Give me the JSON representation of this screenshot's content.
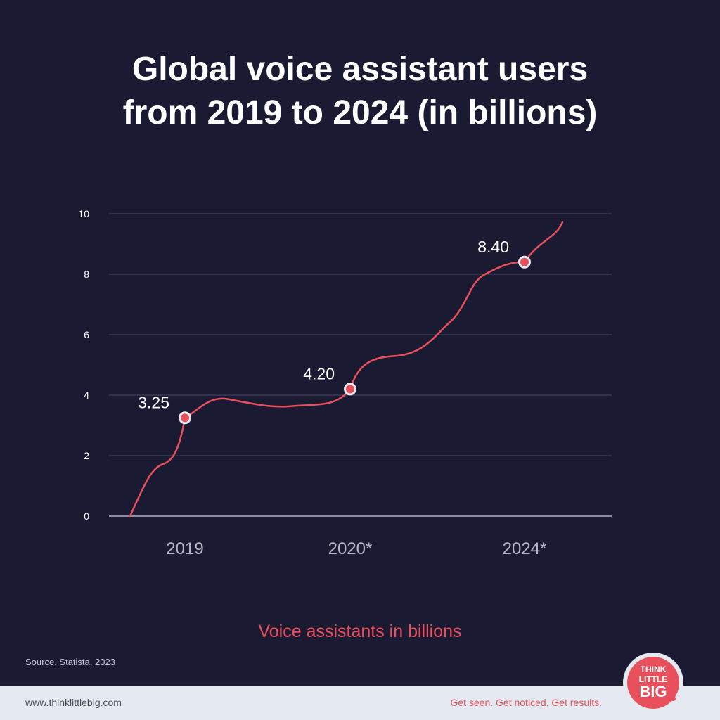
{
  "header": {
    "title_line1": "Global voice assistant users",
    "title_line2": "from 2019 to 2024 (in billions)"
  },
  "chart_data": {
    "type": "line",
    "title": "Global voice assistant users from 2019 to 2024 (in billions)",
    "xlabel": "Voice assistants in billions",
    "ylabel": "",
    "categories": [
      "2019",
      "2020*",
      "2024*"
    ],
    "ylim": [
      0,
      10
    ],
    "yticks": [
      0,
      2,
      4,
      6,
      8,
      10
    ],
    "grid": true,
    "series": [
      {
        "name": "",
        "values": [
          3.25,
          4.2,
          8.4
        ],
        "labels": [
          "3.25",
          "4.20",
          "8.40"
        ]
      }
    ],
    "colors": {
      "line": "#e8505b",
      "marker": "#e8505b",
      "marker_outline": "#e5e9f1",
      "grid": "#4a4a60",
      "axis": "#ffffff",
      "background": "#1b1a33"
    }
  },
  "source": "Source. Statista, 2023",
  "footer": {
    "url": "www.thinklittlebig.com",
    "tagline": "Get seen. Get noticed. Get results.",
    "logo": {
      "line1": "THINK",
      "line2": "LITTLE",
      "line3": "BIG"
    }
  }
}
